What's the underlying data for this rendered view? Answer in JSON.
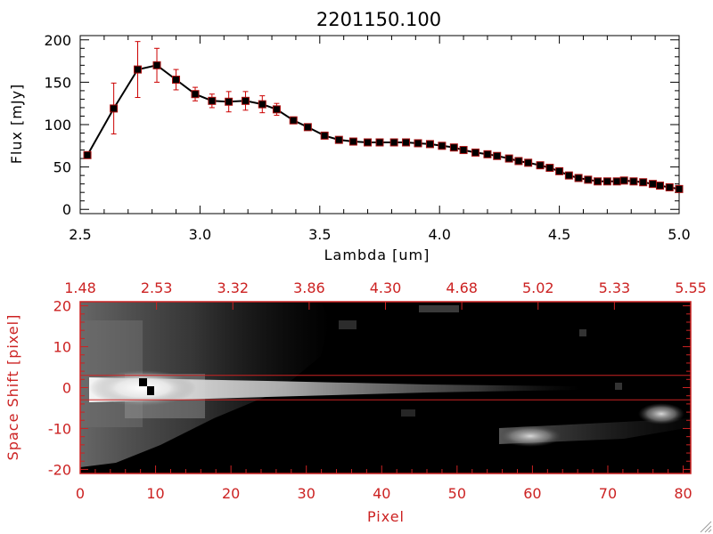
{
  "chart_data": [
    {
      "type": "line",
      "title": "2201150.100",
      "xlabel": "Lambda [um]",
      "ylabel": "Flux [mJy]",
      "xlim": [
        2.5,
        5.0
      ],
      "ylim": [
        -5,
        205
      ],
      "xticks": [
        "2.5",
        "3.0",
        "3.5",
        "4.0",
        "4.5",
        "5.0"
      ],
      "yticks": [
        "0",
        "50",
        "100",
        "150",
        "200"
      ],
      "x": [
        2.53,
        2.64,
        2.74,
        2.82,
        2.9,
        2.98,
        3.05,
        3.12,
        3.19,
        3.26,
        3.32,
        3.39,
        3.45,
        3.52,
        3.58,
        3.64,
        3.7,
        3.75,
        3.81,
        3.86,
        3.91,
        3.96,
        4.01,
        4.06,
        4.1,
        4.15,
        4.2,
        4.24,
        4.29,
        4.33,
        4.37,
        4.42,
        4.46,
        4.5,
        4.54,
        4.58,
        4.62,
        4.66,
        4.7,
        4.74,
        4.77,
        4.81,
        4.85,
        4.89,
        4.92,
        4.96,
        5.0
      ],
      "y": [
        64,
        119,
        165,
        170,
        153,
        136,
        128,
        127,
        128,
        124,
        118,
        105,
        97,
        87,
        82,
        80,
        79,
        79,
        79,
        79,
        78,
        77,
        75,
        73,
        70,
        67,
        65,
        63,
        60,
        57,
        55,
        52,
        49,
        45,
        40,
        37,
        35,
        33,
        33,
        33,
        34,
        33,
        32,
        30,
        28,
        26,
        24
      ],
      "yerr": [
        3,
        30,
        33,
        20,
        12,
        8,
        8,
        12,
        11,
        10,
        7,
        4,
        3,
        3,
        2,
        2,
        2,
        2,
        2,
        2,
        2,
        2,
        2,
        2,
        2,
        2,
        2,
        2,
        2,
        2,
        2,
        2,
        2,
        2,
        2,
        2,
        2,
        2,
        2,
        2,
        2,
        2,
        2,
        2,
        2,
        2,
        2
      ],
      "colors": {
        "line": "#000000",
        "marker": "#000000",
        "errorbar": "#cc0000"
      }
    },
    {
      "type": "heatmap",
      "xlabel": "Pixel",
      "ylabel": "Space Shift [pixel]",
      "xlim": [
        0,
        81
      ],
      "ylim": [
        -21,
        21
      ],
      "xticks": [
        "0",
        "10",
        "20",
        "30",
        "40",
        "50",
        "60",
        "70",
        "80"
      ],
      "yticks": [
        "-20",
        "-10",
        "0",
        "10",
        "20"
      ],
      "top_ticks": [
        "1.48",
        "2.53",
        "3.32",
        "3.86",
        "4.30",
        "4.68",
        "5.02",
        "5.33",
        "5.55"
      ],
      "extraction_aperture": [
        -3,
        3
      ],
      "colors": {
        "frame": "#cc2222",
        "aperture": "#cc2222",
        "colormap": "grayscale"
      }
    }
  ]
}
